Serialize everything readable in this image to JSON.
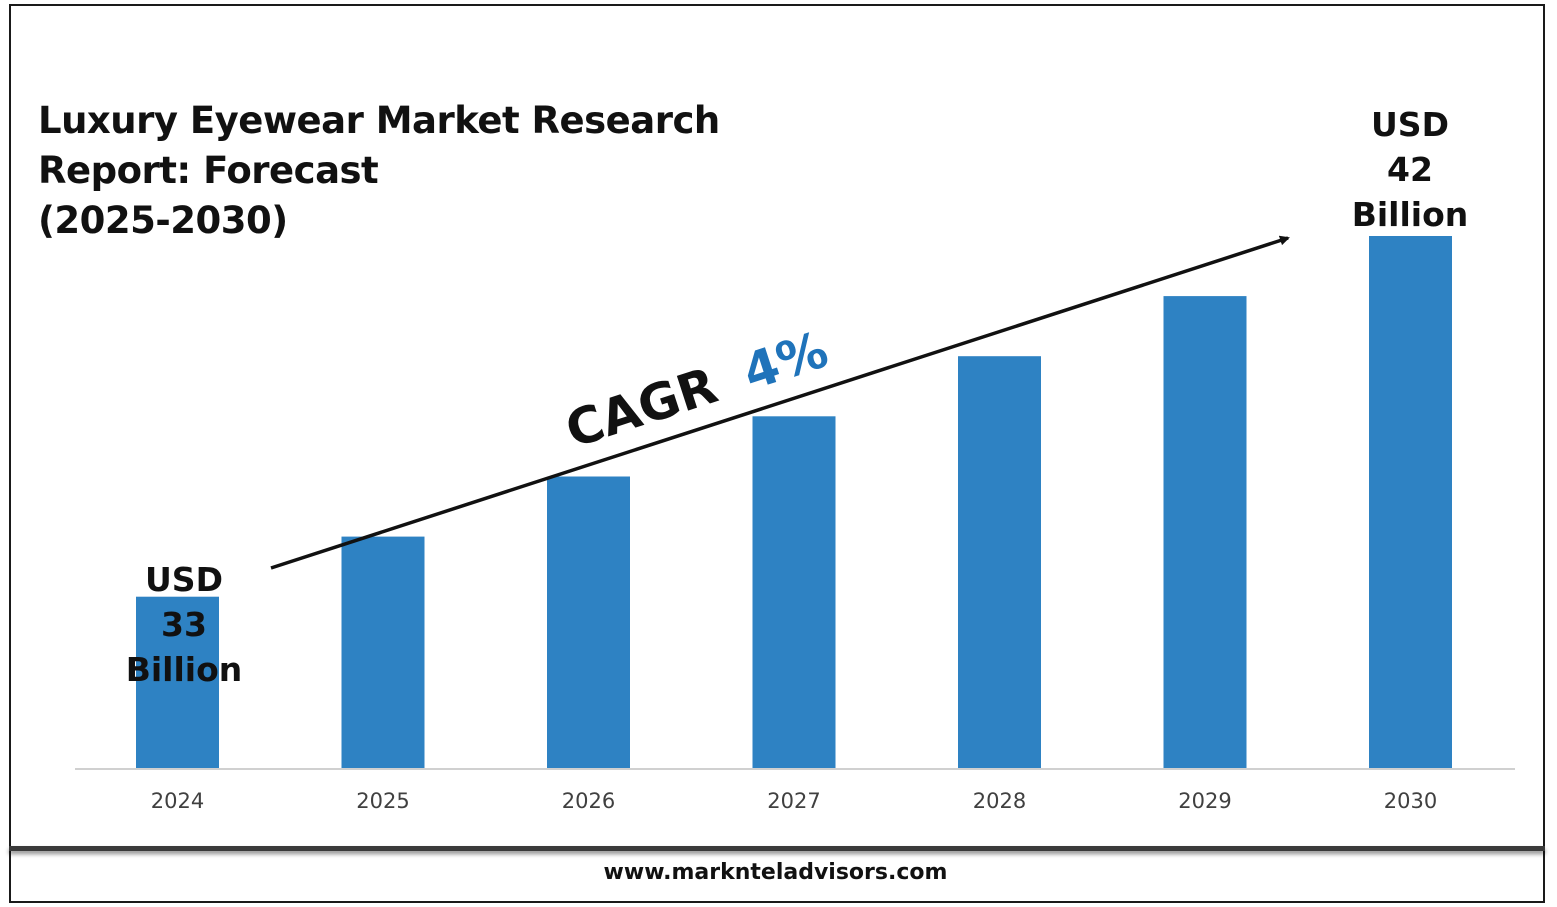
{
  "chart_data": {
    "type": "bar",
    "title_lines": [
      "Luxury Eyewear Market Research",
      "Report: Forecast",
      "(2025-2030)"
    ],
    "categories": [
      "2024",
      "2025",
      "2026",
      "2027",
      "2028",
      "2029",
      "2030"
    ],
    "values": [
      33,
      34.5,
      36,
      37.5,
      39,
      40.5,
      42
    ],
    "ylim": [
      28.7,
      44.7
    ],
    "grid": false,
    "bar_color": "#2e82c3",
    "start_label": [
      "USD",
      "33",
      "Billion"
    ],
    "end_label": [
      "USD",
      "42",
      "Billion"
    ],
    "cagr": {
      "label": "CAGR",
      "value": "4%",
      "value_color": "#1f73ba"
    }
  },
  "footer": {
    "url": "www.marknteladvisors.com"
  }
}
